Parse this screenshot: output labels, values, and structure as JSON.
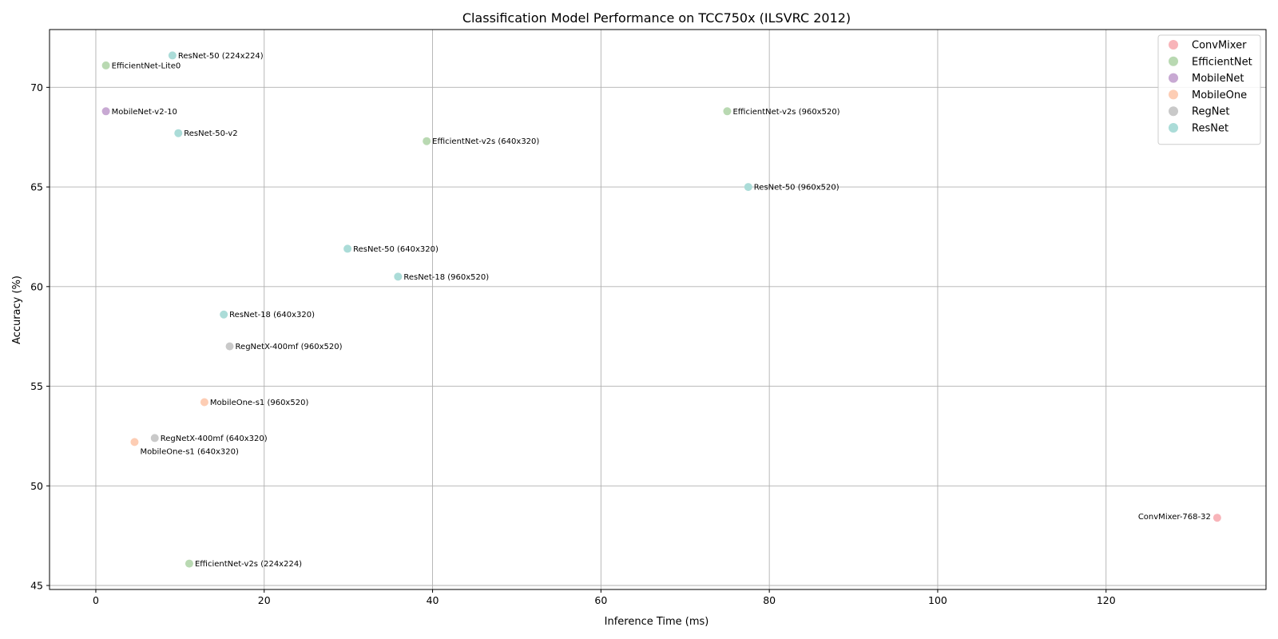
{
  "chart_data": {
    "type": "scatter",
    "title": "Classification Model Performance on TCC750x (ILSVRC 2012)",
    "xlabel": "Inference Time (ms)",
    "ylabel": "Accuracy (%)",
    "xlim": [
      -5.5,
      139
    ],
    "ylim": [
      44.8,
      72.9
    ],
    "xticks": [
      "0",
      "20",
      "40",
      "60",
      "80",
      "100",
      "120"
    ],
    "xtick_values": [
      0,
      20,
      40,
      60,
      80,
      100,
      120
    ],
    "yticks": [
      "45",
      "50",
      "55",
      "60",
      "65",
      "70"
    ],
    "ytick_values": [
      45,
      50,
      55,
      60,
      65,
      70
    ],
    "grid": true,
    "legend_position": "top-right",
    "series": [
      {
        "name": "ConvMixer",
        "color": "#f8b4b9",
        "points": [
          {
            "x": 133.2,
            "y": 48.4,
            "label": "ConvMixer-768-32",
            "anchor": "left"
          }
        ]
      },
      {
        "name": "EfficientNet",
        "color": "#b9d9b2",
        "points": [
          {
            "x": 1.2,
            "y": 71.1,
            "label": "EfficientNet-Lite0",
            "anchor": "right"
          },
          {
            "x": 75.0,
            "y": 68.8,
            "label": "EfficientNet-v2s (960x520)",
            "anchor": "right"
          },
          {
            "x": 39.3,
            "y": 67.3,
            "label": "EfficientNet-v2s (640x320)",
            "anchor": "right"
          },
          {
            "x": 11.1,
            "y": 46.1,
            "label": "EfficientNet-v2s (224x224)",
            "anchor": "right"
          }
        ]
      },
      {
        "name": "MobileNet",
        "color": "#c8a9d3",
        "points": [
          {
            "x": 1.2,
            "y": 68.8,
            "label": "MobileNet-v2-10",
            "anchor": "right"
          }
        ]
      },
      {
        "name": "MobileOne",
        "color": "#fdcdb4",
        "points": [
          {
            "x": 12.9,
            "y": 54.2,
            "label": "MobileOne-s1 (960x520)",
            "anchor": "right"
          },
          {
            "x": 4.6,
            "y": 52.2,
            "label": "MobileOne-s1 (640x320)",
            "anchor": "below"
          }
        ]
      },
      {
        "name": "RegNet",
        "color": "#c9c9c9",
        "points": [
          {
            "x": 15.9,
            "y": 57.0,
            "label": "RegNetX-400mf (960x520)",
            "anchor": "right"
          },
          {
            "x": 7.0,
            "y": 52.4,
            "label": "RegNetX-400mf (640x320)",
            "anchor": "right"
          }
        ]
      },
      {
        "name": "ResNet",
        "color": "#abdcd8",
        "points": [
          {
            "x": 9.1,
            "y": 71.6,
            "label": "ResNet-50 (224x224)",
            "anchor": "right"
          },
          {
            "x": 9.8,
            "y": 67.7,
            "label": "ResNet-50-v2",
            "anchor": "right"
          },
          {
            "x": 77.5,
            "y": 65.0,
            "label": "ResNet-50 (960x520)",
            "anchor": "right"
          },
          {
            "x": 29.9,
            "y": 61.9,
            "label": "ResNet-50 (640x320)",
            "anchor": "right"
          },
          {
            "x": 35.9,
            "y": 60.5,
            "label": "ResNet-18 (960x520)",
            "anchor": "right"
          },
          {
            "x": 15.2,
            "y": 58.6,
            "label": "ResNet-18 (640x320)",
            "anchor": "right"
          }
        ]
      }
    ]
  }
}
